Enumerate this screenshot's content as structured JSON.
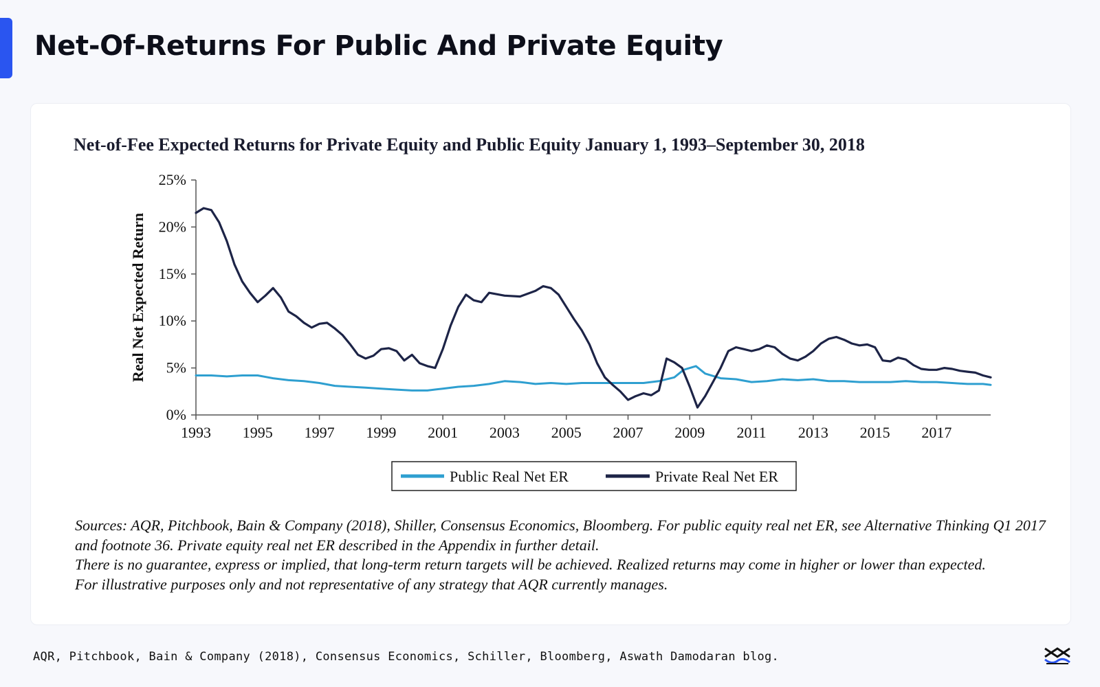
{
  "page": {
    "title": "Net-Of-Returns For Public And Private Equity",
    "source": "AQR, Pitchbook, Bain & Company (2018), Consensus Economics, Schiller, Bloomberg, Aswath Damodaran blog.",
    "accent_color": "#2a55f0"
  },
  "chart_data": {
    "type": "line",
    "title": "Net-of-Fee Expected Returns for Private Equity and Public Equity January 1, 1993–September 30, 2018",
    "xlabel": "",
    "ylabel": "Real Net Expected Return",
    "xlim": [
      1993,
      2018.75
    ],
    "ylim": [
      0,
      25
    ],
    "xticks": [
      1993,
      1995,
      1997,
      1999,
      2001,
      2003,
      2005,
      2007,
      2009,
      2011,
      2013,
      2015,
      2017
    ],
    "xtick_labels": [
      "1993",
      "1995",
      "1997",
      "1999",
      "2001",
      "2003",
      "2005",
      "2007",
      "2009",
      "2011",
      "2013",
      "2015",
      "2017"
    ],
    "yticks": [
      0,
      5,
      10,
      15,
      20,
      25
    ],
    "ytick_labels": [
      "0%",
      "5%",
      "10%",
      "15%",
      "20%",
      "25%"
    ],
    "legend_position": "bottom-center",
    "series": [
      {
        "name": "Public Real Net ER",
        "color": "#2e9fd0",
        "x": [
          1993.0,
          1993.5,
          1994.0,
          1994.5,
          1995.0,
          1995.5,
          1996.0,
          1996.5,
          1997.0,
          1997.5,
          1998.0,
          1998.5,
          1999.0,
          1999.5,
          2000.0,
          2000.5,
          2001.0,
          2001.5,
          2002.0,
          2002.5,
          2003.0,
          2003.5,
          2004.0,
          2004.5,
          2005.0,
          2005.5,
          2006.0,
          2006.5,
          2007.0,
          2007.5,
          2008.0,
          2008.5,
          2008.8,
          2009.2,
          2009.5,
          2010.0,
          2010.5,
          2011.0,
          2011.5,
          2012.0,
          2012.5,
          2013.0,
          2013.5,
          2014.0,
          2014.5,
          2015.0,
          2015.5,
          2016.0,
          2016.5,
          2017.0,
          2017.5,
          2018.0,
          2018.5,
          2018.75
        ],
        "values": [
          4.2,
          4.2,
          4.1,
          4.2,
          4.2,
          3.9,
          3.7,
          3.6,
          3.4,
          3.1,
          3.0,
          2.9,
          2.8,
          2.7,
          2.6,
          2.6,
          2.8,
          3.0,
          3.1,
          3.3,
          3.6,
          3.5,
          3.3,
          3.4,
          3.3,
          3.4,
          3.4,
          3.4,
          3.4,
          3.4,
          3.6,
          4.0,
          4.8,
          5.2,
          4.4,
          3.9,
          3.8,
          3.5,
          3.6,
          3.8,
          3.7,
          3.8,
          3.6,
          3.6,
          3.5,
          3.5,
          3.5,
          3.6,
          3.5,
          3.5,
          3.4,
          3.3,
          3.3,
          3.2
        ]
      },
      {
        "name": "Private Real Net ER",
        "color": "#1d2447",
        "x": [
          1993.0,
          1993.25,
          1993.5,
          1993.75,
          1994.0,
          1994.25,
          1994.5,
          1994.75,
          1995.0,
          1995.25,
          1995.5,
          1995.75,
          1996.0,
          1996.25,
          1996.5,
          1996.75,
          1997.0,
          1997.25,
          1997.5,
          1997.75,
          1998.0,
          1998.25,
          1998.5,
          1998.75,
          1999.0,
          1999.25,
          1999.5,
          1999.75,
          2000.0,
          2000.25,
          2000.5,
          2000.75,
          2001.0,
          2001.25,
          2001.5,
          2001.75,
          2002.0,
          2002.25,
          2002.5,
          2003.0,
          2003.5,
          2004.0,
          2004.25,
          2004.5,
          2004.75,
          2005.0,
          2005.25,
          2005.5,
          2005.75,
          2006.0,
          2006.25,
          2006.5,
          2006.75,
          2007.0,
          2007.25,
          2007.5,
          2007.75,
          2008.0,
          2008.25,
          2008.5,
          2008.75,
          2009.0,
          2009.25,
          2009.5,
          2009.75,
          2010.0,
          2010.25,
          2010.5,
          2010.75,
          2011.0,
          2011.25,
          2011.5,
          2011.75,
          2012.0,
          2012.25,
          2012.5,
          2012.75,
          2013.0,
          2013.25,
          2013.5,
          2013.75,
          2014.0,
          2014.25,
          2014.5,
          2014.75,
          2015.0,
          2015.25,
          2015.5,
          2015.75,
          2016.0,
          2016.25,
          2016.5,
          2016.75,
          2017.0,
          2017.25,
          2017.5,
          2017.75,
          2018.0,
          2018.25,
          2018.5,
          2018.75
        ],
        "values": [
          21.5,
          22.0,
          21.8,
          20.5,
          18.5,
          16.0,
          14.2,
          13.0,
          12.0,
          12.7,
          13.5,
          12.5,
          11.0,
          10.5,
          9.8,
          9.3,
          9.7,
          9.8,
          9.2,
          8.5,
          7.5,
          6.4,
          6.0,
          6.3,
          7.0,
          7.1,
          6.8,
          5.8,
          6.4,
          5.5,
          5.2,
          5.0,
          7.0,
          9.5,
          11.5,
          12.8,
          12.2,
          12.0,
          13.0,
          12.7,
          12.6,
          13.2,
          13.7,
          13.5,
          12.8,
          11.5,
          10.2,
          9.0,
          7.5,
          5.5,
          4.0,
          3.2,
          2.5,
          1.6,
          2.0,
          2.3,
          2.1,
          2.6,
          6.0,
          5.6,
          5.0,
          3.0,
          0.8,
          2.0,
          3.5,
          5.0,
          6.8,
          7.2,
          7.0,
          6.8,
          7.0,
          7.4,
          7.2,
          6.5,
          6.0,
          5.8,
          6.2,
          6.8,
          7.6,
          8.1,
          8.3,
          8.0,
          7.6,
          7.4,
          7.5,
          7.2,
          5.8,
          5.7,
          6.1,
          5.9,
          5.3,
          4.9,
          4.8,
          4.8,
          5.0,
          4.9,
          4.7,
          4.6,
          4.5,
          4.2,
          4.0
        ]
      }
    ]
  },
  "notes": {
    "line1": "Sources: AQR, Pitchbook, Bain & Company (2018), Shiller, Consensus Economics, Bloomberg. For public equity real net ER, see Alternative Thinking Q1 2017 and footnote 36. Private equity real net ER described in the Appendix in further detail.",
    "line2": "There is no guarantee, express or implied, that long-term return targets will be achieved. Realized returns may come in higher or lower than expected.",
    "line3": "For illustrative purposes only and not representative of any strategy that AQR currently manages."
  }
}
